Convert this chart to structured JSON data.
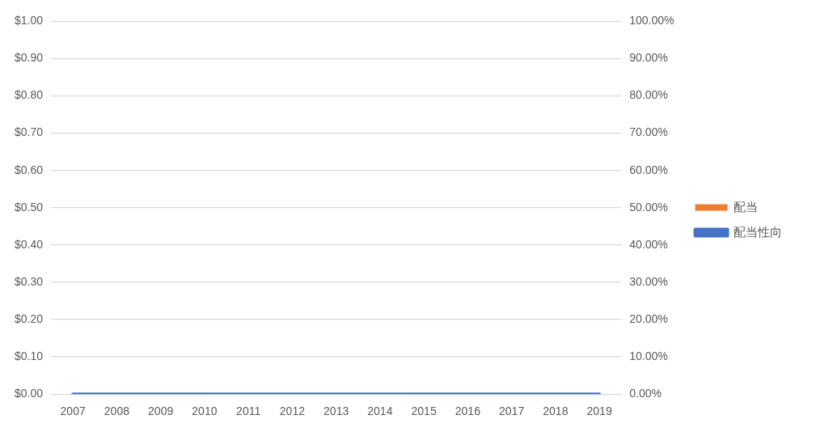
{
  "chart_data": {
    "type": "bar",
    "categories": [
      "2007",
      "2008",
      "2009",
      "2010",
      "2011",
      "2012",
      "2013",
      "2014",
      "2015",
      "2016",
      "2017",
      "2018",
      "2019"
    ],
    "series": [
      {
        "name": "配当",
        "color": "#ed7d31",
        "values": [
          0,
          0,
          0,
          0,
          0,
          0,
          0,
          0,
          0,
          0,
          0,
          0,
          0
        ]
      },
      {
        "name": "配当性向",
        "type": "line",
        "axis": "y2",
        "color": "#4472c4",
        "values": [
          0,
          0,
          0,
          0,
          0,
          0,
          0,
          0,
          0,
          0,
          0,
          0,
          0
        ]
      }
    ],
    "ylim": [
      0,
      1
    ],
    "yticks": [
      {
        "value": 0,
        "label": "$0.00"
      },
      {
        "value": 0.1,
        "label": "$0.10"
      },
      {
        "value": 0.2,
        "label": "$0.20"
      },
      {
        "value": 0.3,
        "label": "$0.30"
      },
      {
        "value": 0.4,
        "label": "$0.40"
      },
      {
        "value": 0.5,
        "label": "$0.50"
      },
      {
        "value": 0.6,
        "label": "$0.60"
      },
      {
        "value": 0.7,
        "label": "$0.70"
      },
      {
        "value": 0.8,
        "label": "$0.80"
      },
      {
        "value": 0.9,
        "label": "$0.90"
      },
      {
        "value": 1,
        "label": "$1.00"
      }
    ],
    "y2lim": [
      0,
      100
    ],
    "y2ticks": [
      {
        "value": 0,
        "label": "0.00%"
      },
      {
        "value": 10,
        "label": "10.00%"
      },
      {
        "value": 20,
        "label": "20.00%"
      },
      {
        "value": 30,
        "label": "30.00%"
      },
      {
        "value": 40,
        "label": "40.00%"
      },
      {
        "value": 50,
        "label": "50.00%"
      },
      {
        "value": 60,
        "label": "60.00%"
      },
      {
        "value": 70,
        "label": "70.00%"
      },
      {
        "value": 80,
        "label": "80.00%"
      },
      {
        "value": 90,
        "label": "90.00%"
      },
      {
        "value": 100,
        "label": "100.00%"
      }
    ],
    "grid": "y",
    "legend": "right",
    "marker": "none"
  }
}
